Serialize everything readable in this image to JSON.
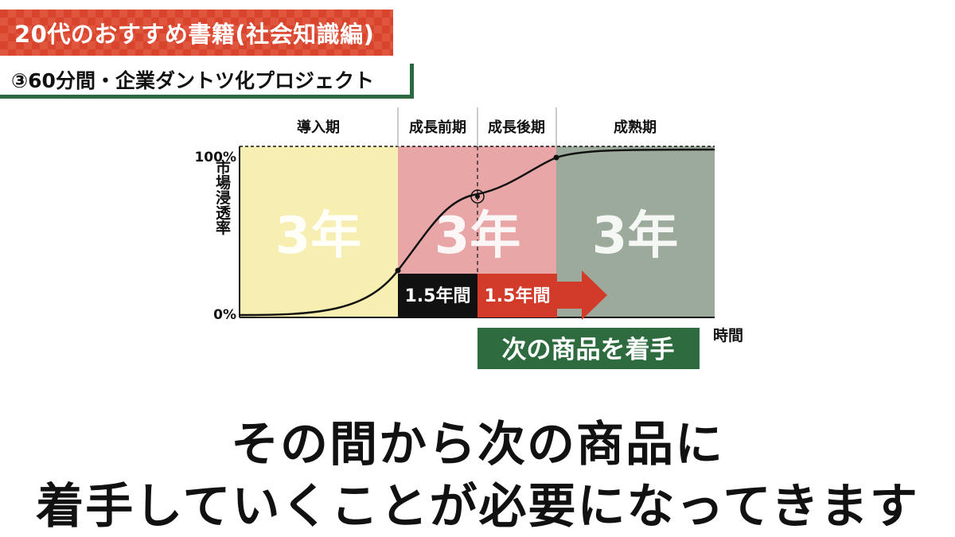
{
  "header": {
    "title": "20代のおすすめ書籍(社会知識編)",
    "subtitle": "③60分間・企業ダントツ化プロジェクト"
  },
  "chart_data": {
    "type": "area",
    "phases": [
      {
        "label": "導入期",
        "duration_label": "3年",
        "color": "#f7eeb1"
      },
      {
        "label": "成長前期",
        "duration_label": "3年",
        "color": "#e8a7a6"
      },
      {
        "label": "成長後期",
        "duration_label": "",
        "color": "#e8a7a6"
      },
      {
        "label": "成熟期",
        "duration_label": "3年",
        "color": "#9caa9b"
      }
    ],
    "ylabel": "市場浸透率",
    "xlabel": "時間",
    "yticks": [
      "100%",
      "0%"
    ],
    "ylim": [
      0,
      100
    ],
    "arrow_segments": [
      {
        "label": "1.5年間",
        "color": "#111111"
      },
      {
        "label": "1.5年間",
        "color": "#d23a2a"
      }
    ],
    "callout": "次の商品を着手",
    "callout_color": "#2e6b3f"
  },
  "caption": {
    "line1": "その間から次の商品に",
    "line2": "着手していくことが必要になってきます"
  }
}
